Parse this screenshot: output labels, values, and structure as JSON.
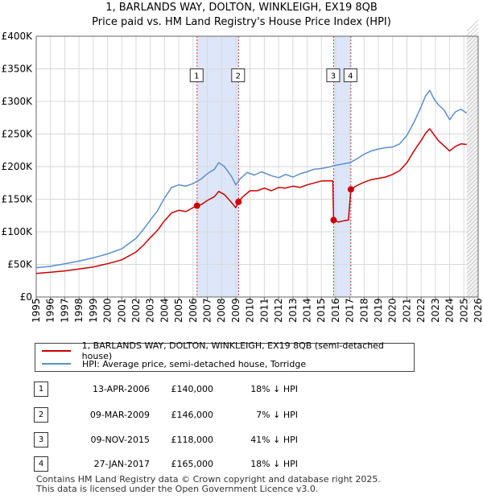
{
  "title_line1": "1, BARLANDS WAY, DOLTON, WINKLEIGH, EX19 8QB",
  "title_line2": "Price paid vs. HM Land Registry's House Price Index (HPI)",
  "legend": {
    "property": "1, BARLANDS WAY, DOLTON, WINKLEIGH, EX19 8QB (semi-detached house)",
    "hpi": "HPI: Average price, semi-detached house, Torridge"
  },
  "colors": {
    "property": "#cc0000",
    "hpi": "#5b8fcc",
    "shade": "#dce6f8",
    "grid": "#d9d9d9"
  },
  "transactions": [
    {
      "num": "1",
      "date": "13-APR-2006",
      "price": "£140,000",
      "hpi": "18% ↓ HPI"
    },
    {
      "num": "2",
      "date": "09-MAR-2009",
      "price": "£146,000",
      "hpi": "7% ↓ HPI"
    },
    {
      "num": "3",
      "date": "09-NOV-2015",
      "price": "£118,000",
      "hpi": "41% ↓ HPI"
    },
    {
      "num": "4",
      "date": "27-JAN-2017",
      "price": "£165,000",
      "hpi": "18% ↓ HPI"
    }
  ],
  "footer_line1": "Contains HM Land Registry data © Crown copyright and database right 2025.",
  "footer_line2": "This data is licensed under the Open Government Licence v3.0.",
  "chart_data": {
    "type": "line",
    "title": "1, BARLANDS WAY, DOLTON, WINKLEIGH, EX19 8QB — Price paid vs. HM Land Registry's House Price Index (HPI)",
    "xlabel": "",
    "ylabel": "",
    "xlim": [
      1995,
      2026
    ],
    "ylim": [
      0,
      400000
    ],
    "x_ticks": [
      1995,
      1996,
      1997,
      1998,
      1999,
      2000,
      2001,
      2002,
      2003,
      2004,
      2005,
      2006,
      2007,
      2008,
      2009,
      2010,
      2011,
      2012,
      2013,
      2014,
      2015,
      2016,
      2017,
      2018,
      2019,
      2020,
      2021,
      2022,
      2023,
      2024,
      2025,
      2026
    ],
    "y_ticks": [
      0,
      50000,
      100000,
      150000,
      200000,
      250000,
      300000,
      350000,
      400000
    ],
    "y_tick_labels": [
      "£0",
      "£50K",
      "£100K",
      "£150K",
      "£200K",
      "£250K",
      "£300K",
      "£350K",
      "£400K"
    ],
    "grid": true,
    "shaded_ranges": [
      [
        2006.28,
        2009.19
      ],
      [
        2015.86,
        2017.07
      ]
    ],
    "projection_from": 2025.2,
    "series": [
      {
        "name": "HPI: Average price, semi-detached house, Torridge",
        "x": [
          1995,
          1996,
          1997,
          1998,
          1999,
          2000,
          2001,
          2002,
          2002.5,
          2003,
          2003.5,
          2004,
          2004.5,
          2005,
          2005.5,
          2006,
          2006.5,
          2007,
          2007.5,
          2007.8,
          2008.2,
          2008.7,
          2009,
          2009.3,
          2009.8,
          2010.3,
          2010.8,
          2011.5,
          2012,
          2012.5,
          2013,
          2013.5,
          2014,
          2014.5,
          2015,
          2015.5,
          2016,
          2016.5,
          2017,
          2017.5,
          2018,
          2018.5,
          2019,
          2019.5,
          2020,
          2020.5,
          2021,
          2021.5,
          2022,
          2022.3,
          2022.6,
          2022.9,
          2023.2,
          2023.6,
          2024,
          2024.4,
          2024.8,
          2025.2
        ],
        "values": [
          45000,
          47000,
          51000,
          55000,
          60000,
          66000,
          74000,
          90000,
          103000,
          118000,
          132000,
          152000,
          168000,
          172000,
          170000,
          174000,
          180000,
          189000,
          196000,
          206000,
          200000,
          185000,
          172000,
          181000,
          191000,
          187000,
          192000,
          186000,
          183000,
          188000,
          184000,
          189000,
          192000,
          196000,
          197000,
          199000,
          202000,
          204000,
          206000,
          212000,
          219000,
          224000,
          227000,
          229000,
          230000,
          235000,
          248000,
          268000,
          292000,
          308000,
          317000,
          304000,
          295000,
          287000,
          272000,
          284000,
          288000,
          282000
        ]
      },
      {
        "name": "1, BARLANDS WAY, DOLTON, WINKLEIGH, EX19 8QB (semi-detached house)",
        "x": [
          1995,
          1996,
          1997,
          1998,
          1999,
          2000,
          2001,
          2002,
          2002.5,
          2003,
          2003.5,
          2004,
          2004.5,
          2005,
          2005.5,
          2006,
          2006.28,
          2006.6,
          2007,
          2007.5,
          2007.8,
          2008.2,
          2008.7,
          2009,
          2009.19,
          2009.5,
          2010,
          2010.5,
          2011,
          2011.5,
          2012,
          2012.5,
          2013,
          2013.5,
          2014,
          2014.5,
          2015,
          2015.5,
          2015.8,
          2015.86,
          2016.2,
          2016.6,
          2016.9,
          2017.07,
          2017.5,
          2018,
          2018.5,
          2019,
          2019.5,
          2020,
          2020.5,
          2021,
          2021.5,
          2022,
          2022.3,
          2022.6,
          2022.9,
          2023.2,
          2023.6,
          2024,
          2024.4,
          2024.8,
          2025.2
        ],
        "values": [
          36000,
          38000,
          40000,
          43000,
          46000,
          51000,
          57000,
          69000,
          79000,
          91000,
          102000,
          117000,
          129000,
          133000,
          131000,
          137000,
          140000,
          142000,
          148000,
          154000,
          162000,
          157000,
          145000,
          137000,
          146000,
          154000,
          163000,
          163000,
          167000,
          163000,
          168000,
          167000,
          170000,
          168000,
          172000,
          175000,
          178000,
          178000,
          178000,
          118000,
          115000,
          117000,
          118000,
          165000,
          171000,
          176000,
          180000,
          182000,
          184000,
          188000,
          194000,
          206000,
          224000,
          240000,
          251000,
          258000,
          249000,
          240000,
          232000,
          224000,
          231000,
          235000,
          234000
        ]
      }
    ],
    "markers": [
      {
        "label": "1",
        "x": 2006.28,
        "value": 140000
      },
      {
        "label": "2",
        "x": 2009.19,
        "value": 146000
      },
      {
        "label": "3",
        "x": 2015.86,
        "value": 118000
      },
      {
        "label": "4",
        "x": 2017.07,
        "value": 165000
      }
    ]
  }
}
